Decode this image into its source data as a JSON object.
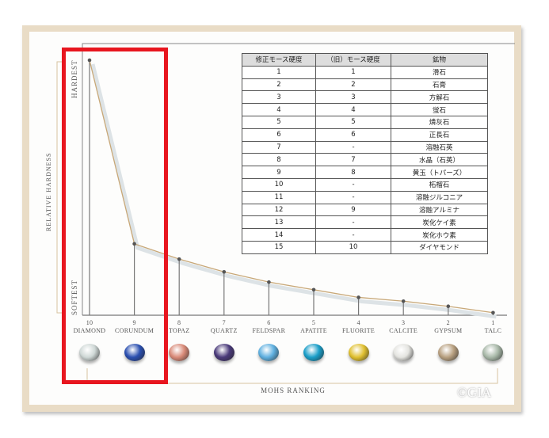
{
  "chart_data": {
    "type": "line",
    "xlabel": "MOHS RANKING",
    "ylabel": "RELATIVE HARDNESS",
    "y_axis_labels": {
      "top": "HARDEST",
      "bottom": "SOFTEST"
    },
    "categories": [
      {
        "rank": "10",
        "name": "DIAMOND",
        "color": "#cfd8d6"
      },
      {
        "rank": "9",
        "name": "CORUNDUM",
        "color": "#2a4fb0"
      },
      {
        "rank": "8",
        "name": "TOPAZ",
        "color": "#d98a78"
      },
      {
        "rank": "7",
        "name": "QUARTZ",
        "color": "#4a3a7a"
      },
      {
        "rank": "6",
        "name": "FELDSPAR",
        "color": "#5fb0e0"
      },
      {
        "rank": "5",
        "name": "APATITE",
        "color": "#1a9ec8"
      },
      {
        "rank": "4",
        "name": "FLUORITE",
        "color": "#e0c030"
      },
      {
        "rank": "3",
        "name": "CALCITE",
        "color": "#e4e4e0"
      },
      {
        "rank": "2",
        "name": "GYPSUM",
        "color": "#b8a080"
      },
      {
        "rank": "1",
        "name": "TALC",
        "color": "#a8b8a8"
      }
    ],
    "values": [
      100,
      28,
      22,
      17,
      13,
      10,
      7,
      5.5,
      3.5,
      1
    ],
    "ylim": [
      0,
      100
    ],
    "grid": false,
    "line_color": "#c8a878"
  },
  "table": {
    "headers": [
      "修正モース硬度",
      "（旧）モース硬度",
      "鉱物"
    ],
    "rows": [
      [
        "1",
        "1",
        "滑石"
      ],
      [
        "2",
        "2",
        "石膏"
      ],
      [
        "3",
        "3",
        "方解石"
      ],
      [
        "4",
        "4",
        "蛍石"
      ],
      [
        "5",
        "5",
        "燐灰石"
      ],
      [
        "6",
        "6",
        "正長石"
      ],
      [
        "7",
        "-",
        "溶融石英"
      ],
      [
        "8",
        "7",
        "水晶（石英）"
      ],
      [
        "9",
        "8",
        "黄玉（トパーズ）"
      ],
      [
        "10",
        "-",
        "柘榴石"
      ],
      [
        "11",
        "-",
        "溶融ジルコニア"
      ],
      [
        "12",
        "9",
        "溶融アルミナ"
      ],
      [
        "13",
        "-",
        "炭化ケイ素"
      ],
      [
        "14",
        "-",
        "炭化ホウ素"
      ],
      [
        "15",
        "10",
        "ダイヤモンド"
      ]
    ]
  },
  "highlight_color": "#e8161f",
  "watermark": "©GIA"
}
